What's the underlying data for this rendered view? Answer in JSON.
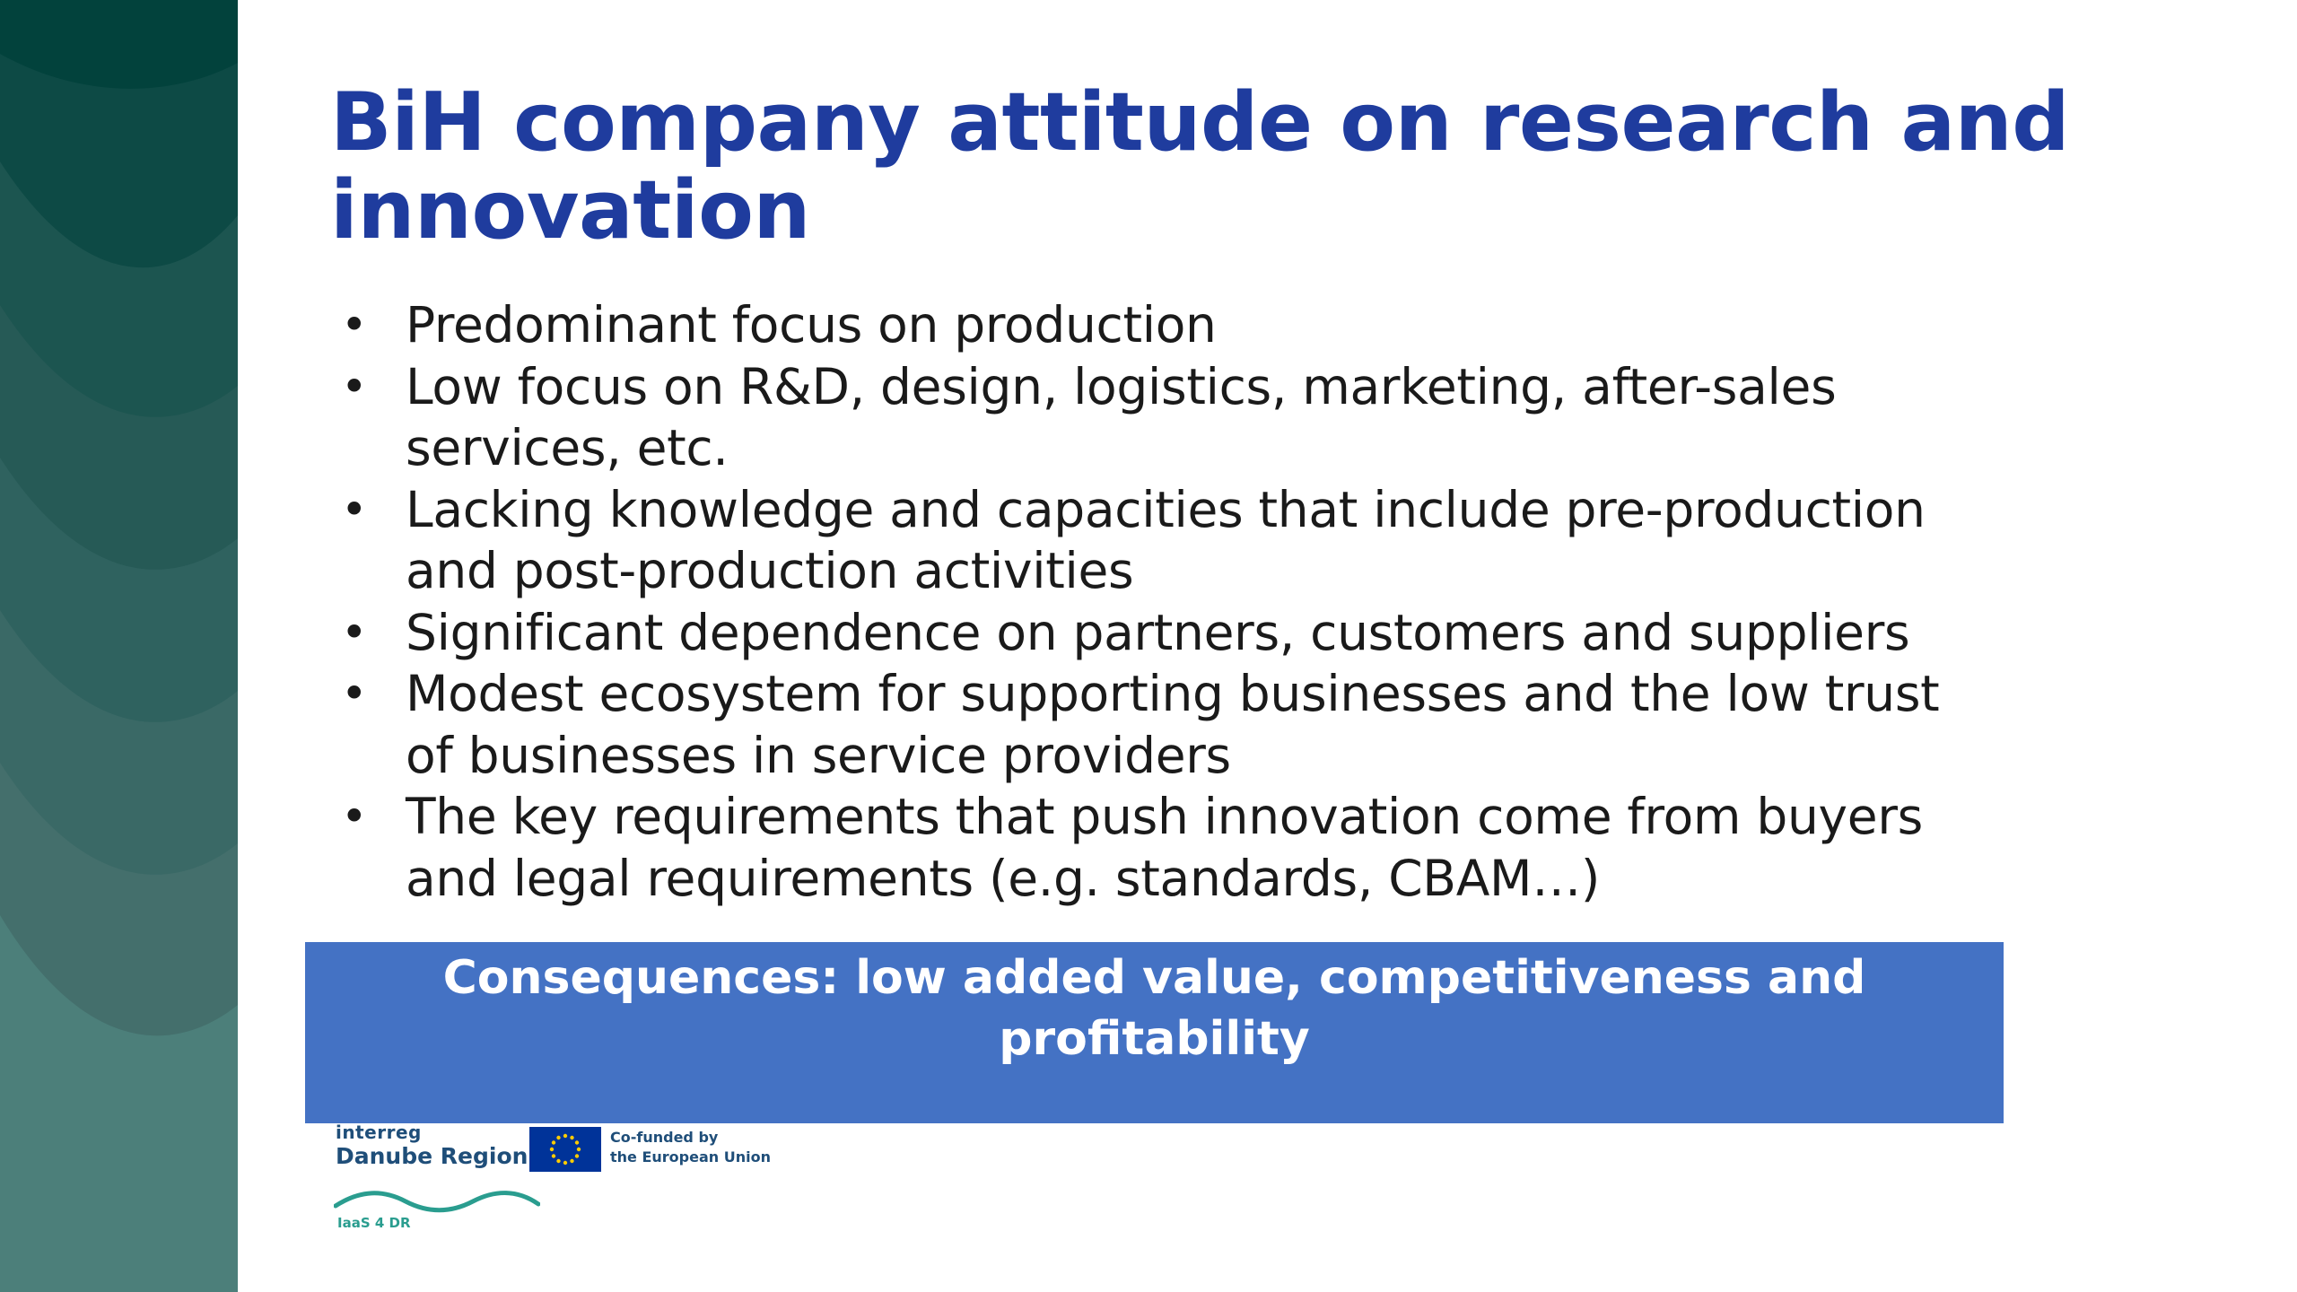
{
  "slide": {
    "title": "BiH company attitude on research and innovation",
    "bullets": [
      "Predominant focus on production",
      "Low focus on R&D, design, logistics, marketing, after-sales services, etc.",
      "Lacking knowledge and capacities that include pre-production and post-production activities",
      "Significant dependence on partners, customers and suppliers",
      "Modest ecosystem for supporting businesses and the low trust of businesses in service providers",
      "The key requirements that push innovation come from buyers and legal requirements (e.g. standards, CBAM…)"
    ],
    "bullet_symbol": "•",
    "consequence": "Consequences: low added value, competitiveness and profitability"
  },
  "footer": {
    "program_small": "interreg",
    "program_name": "Danube Region",
    "cofunded_line1": "Co-funded by",
    "cofunded_line2": "the European Union",
    "project_label": "IaaS 4 DR"
  },
  "colors": {
    "title": "#1f3c9e",
    "consequence_bg": "#4472c4",
    "sidebar_top": "#02423c",
    "sidebar_bottom": "#4c7f7a",
    "eu_blue": "#003399",
    "eu_star": "#ffcc00"
  }
}
